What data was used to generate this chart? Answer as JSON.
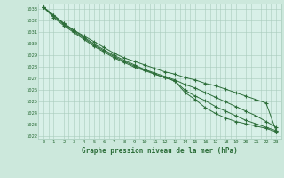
{
  "title": "Graphe pression niveau de la mer (hPa)",
  "background_color": "#cce8dc",
  "plot_bg_color": "#d8f0e8",
  "grid_color": "#a8ccbc",
  "line_color": "#2d6e3a",
  "marker_color": "#2d6e3a",
  "xlim": [
    -0.5,
    23.5
  ],
  "ylim": [
    1021.8,
    1033.5
  ],
  "yticks": [
    1022,
    1023,
    1024,
    1025,
    1026,
    1027,
    1028,
    1029,
    1030,
    1031,
    1032,
    1033
  ],
  "xticks": [
    0,
    1,
    2,
    3,
    4,
    5,
    6,
    7,
    8,
    9,
    10,
    11,
    12,
    13,
    14,
    15,
    16,
    17,
    18,
    19,
    20,
    21,
    22,
    23
  ],
  "series": [
    [
      1033.2,
      1032.5,
      1031.8,
      1031.2,
      1030.7,
      1030.2,
      1029.7,
      1029.2,
      1028.8,
      1028.5,
      1028.2,
      1027.9,
      1027.6,
      1027.4,
      1027.1,
      1026.9,
      1026.6,
      1026.4,
      1026.1,
      1025.8,
      1025.5,
      1025.2,
      1024.9,
      1022.5
    ],
    [
      1033.2,
      1032.5,
      1031.8,
      1031.2,
      1030.6,
      1030.0,
      1029.5,
      1029.0,
      1028.6,
      1028.2,
      1027.8,
      1027.5,
      1027.2,
      1026.9,
      1026.5,
      1026.2,
      1025.8,
      1025.4,
      1025.0,
      1024.6,
      1024.2,
      1023.8,
      1023.3,
      1022.8
    ],
    [
      1033.2,
      1032.4,
      1031.7,
      1031.1,
      1030.5,
      1029.9,
      1029.4,
      1028.9,
      1028.5,
      1028.1,
      1027.8,
      1027.4,
      1027.1,
      1026.8,
      1026.0,
      1025.5,
      1025.1,
      1024.6,
      1024.2,
      1023.8,
      1023.4,
      1023.1,
      1022.8,
      1022.5
    ],
    [
      1033.2,
      1032.3,
      1031.6,
      1031.0,
      1030.4,
      1029.8,
      1029.3,
      1028.8,
      1028.4,
      1028.0,
      1027.7,
      1027.4,
      1027.1,
      1026.8,
      1025.8,
      1025.2,
      1024.5,
      1024.0,
      1023.6,
      1023.3,
      1023.1,
      1022.9,
      1022.7,
      1022.4
    ]
  ]
}
